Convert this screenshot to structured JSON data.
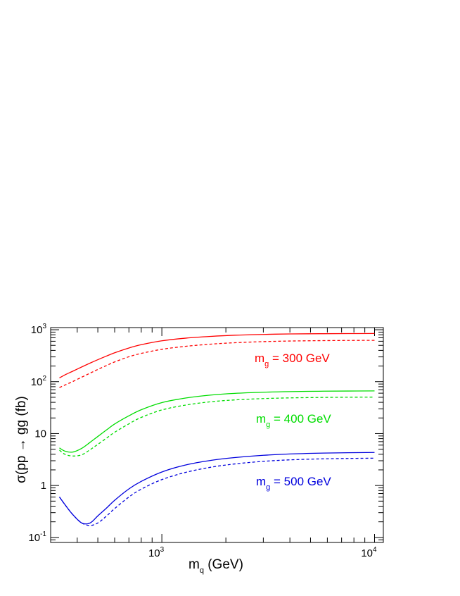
{
  "chart_data": {
    "type": "line",
    "xscale": "log",
    "yscale": "log",
    "xlim": [
      300,
      11000
    ],
    "ylim": [
      0.08,
      1100
    ],
    "x_tick_labels": [
      {
        "value": 1000,
        "base": "10",
        "exp": "3"
      },
      {
        "value": 10000,
        "base": "10",
        "exp": "4"
      }
    ],
    "y_tick_labels": [
      {
        "value": 0.1,
        "base": "10",
        "exp": "-1"
      },
      {
        "value": 1,
        "text": "1"
      },
      {
        "value": 10,
        "text": "10"
      },
      {
        "value": 100,
        "base": "10",
        "exp": "2"
      },
      {
        "value": 1000,
        "base": "10",
        "exp": "3"
      }
    ],
    "xlabel": {
      "main": "m",
      "sub": "q",
      "tail": " (GeV)"
    },
    "ylabel": {
      "text": "σ(pp → gg (fb)"
    },
    "x": [
      330,
      350,
      380,
      420,
      460,
      500,
      550,
      600,
      700,
      800,
      1000,
      1300,
      1700,
      2200,
      3000,
      4000,
      5500,
      7500,
      10000
    ],
    "series": [
      {
        "label": {
          "main": "m",
          "sub": "g",
          "tail": " = 300 GeV"
        },
        "color": "#ff0000",
        "solid": [
          118,
          135,
          158,
          192,
          228,
          265,
          312,
          360,
          445,
          515,
          612,
          690,
          745,
          785,
          812,
          830,
          838,
          843,
          846
        ],
        "dashed": [
          77,
          86,
          100,
          122,
          146,
          172,
          205,
          240,
          302,
          350,
          420,
          480,
          528,
          562,
          590,
          606,
          616,
          622,
          625
        ]
      },
      {
        "label": {
          "main": "m",
          "sub": "g",
          "tail": " = 400 GeV"
        },
        "color": "#00dd00",
        "solid": [
          5.3,
          4.6,
          4.4,
          5.2,
          6.8,
          8.8,
          11.8,
          15.3,
          22.0,
          28.8,
          39.5,
          48.5,
          55.2,
          59.5,
          62.6,
          64.3,
          65.4,
          66.0,
          66.4
        ],
        "dashed": [
          4.8,
          4.0,
          3.7,
          3.9,
          4.9,
          6.2,
          8.2,
          10.6,
          15.4,
          20.5,
          28.5,
          35.5,
          41.0,
          44.5,
          47.2,
          48.7,
          49.6,
          50.1,
          50.4
        ]
      },
      {
        "label": {
          "main": "m",
          "sub": "g",
          "tail": " = 500 GeV"
        },
        "color": "#0000dd",
        "solid": [
          0.6,
          0.43,
          0.28,
          0.19,
          0.19,
          0.26,
          0.37,
          0.52,
          0.86,
          1.2,
          1.82,
          2.5,
          3.05,
          3.45,
          3.82,
          4.05,
          4.2,
          4.28,
          4.33
        ],
        "dashed": [
          0.6,
          0.43,
          0.28,
          0.19,
          0.17,
          0.19,
          0.26,
          0.36,
          0.6,
          0.85,
          1.3,
          1.8,
          2.25,
          2.6,
          2.92,
          3.12,
          3.25,
          3.32,
          3.36
        ]
      }
    ]
  }
}
